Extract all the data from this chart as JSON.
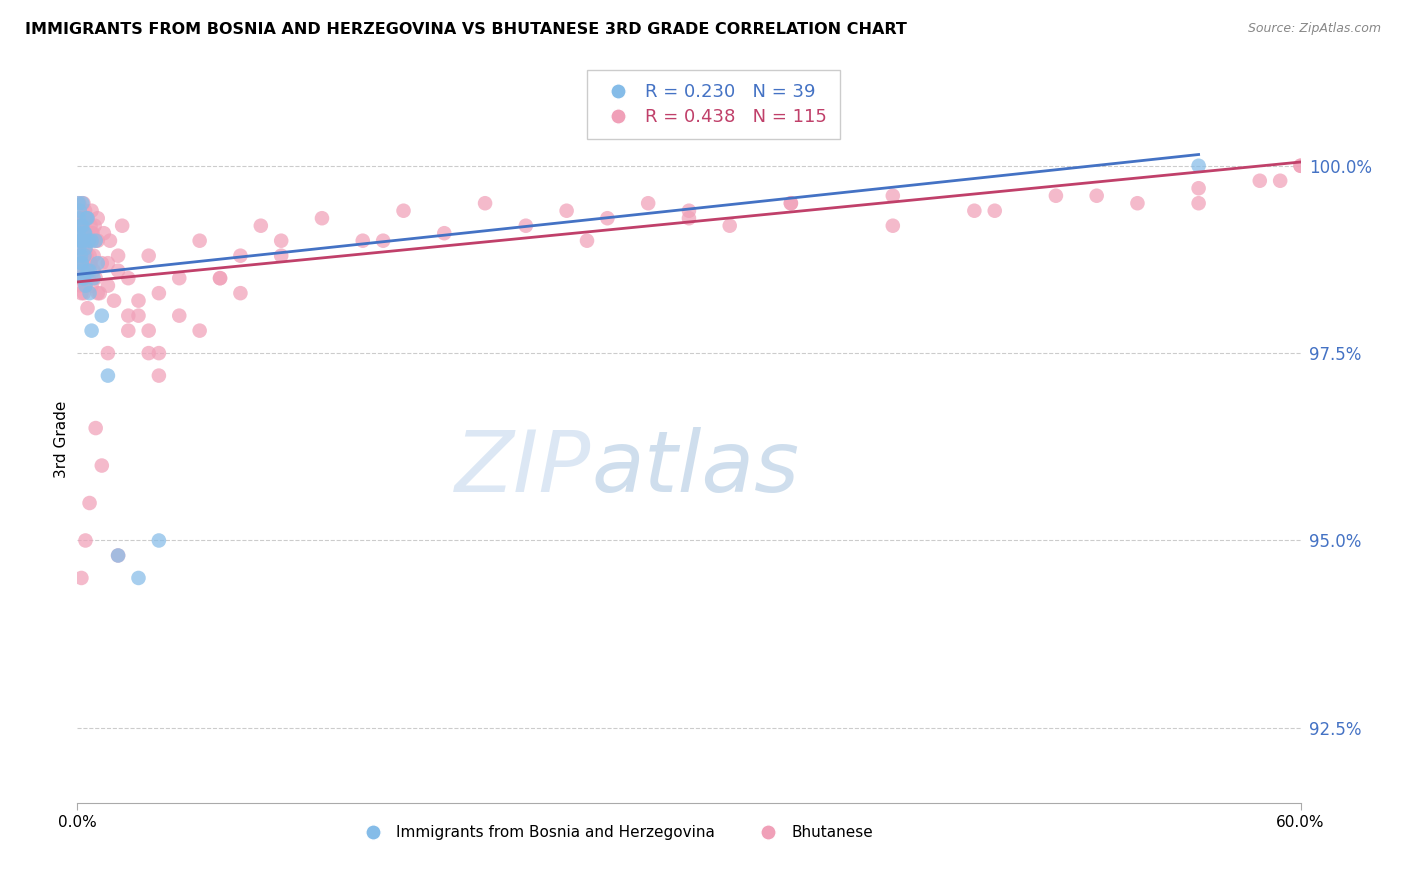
{
  "title": "IMMIGRANTS FROM BOSNIA AND HERZEGOVINA VS BHUTANESE 3RD GRADE CORRELATION CHART",
  "source": "Source: ZipAtlas.com",
  "ylabel": "3rd Grade",
  "xlim": [
    0.0,
    60.0
  ],
  "ylim": [
    91.5,
    101.2
  ],
  "yticks": [
    92.5,
    95.0,
    97.5,
    100.0
  ],
  "xticks": [
    0.0,
    60.0
  ],
  "xtick_labels": [
    "0.0%",
    "60.0%"
  ],
  "ytick_labels": [
    "92.5%",
    "95.0%",
    "97.5%",
    "100.0%"
  ],
  "bosnia_color": "#85BCE8",
  "bhutan_color": "#F0A0B8",
  "bosnia_line_color": "#4472C4",
  "bhutan_line_color": "#C0406A",
  "watermark_zip": "ZIP",
  "watermark_atlas": "atlas",
  "legend_label_bottom_bosnia": "Immigrants from Bosnia and Herzegovina",
  "legend_label_bottom_bhutan": "Bhutanese",
  "bosnia_x": [
    0.05,
    0.08,
    0.1,
    0.12,
    0.15,
    0.18,
    0.2,
    0.22,
    0.25,
    0.28,
    0.3,
    0.32,
    0.35,
    0.38,
    0.4,
    0.45,
    0.5,
    0.55,
    0.6,
    0.7,
    0.8,
    0.9,
    1.0,
    1.2,
    1.5,
    2.0,
    3.0,
    4.0,
    0.15,
    0.2,
    0.25,
    0.3,
    0.35,
    0.4,
    0.5,
    0.6,
    0.7,
    0.05,
    55.0
  ],
  "bosnia_y": [
    99.1,
    99.3,
    98.9,
    99.4,
    99.0,
    98.8,
    99.2,
    98.7,
    99.5,
    98.6,
    99.0,
    98.5,
    98.8,
    99.1,
    98.4,
    99.3,
    98.6,
    99.0,
    98.3,
    97.8,
    98.5,
    99.0,
    98.7,
    98.0,
    97.2,
    94.8,
    94.5,
    95.0,
    99.0,
    98.7,
    99.2,
    98.5,
    99.1,
    98.9,
    99.3,
    98.6,
    99.0,
    99.5,
    100.0
  ],
  "bhutan_x": [
    0.05,
    0.08,
    0.1,
    0.12,
    0.15,
    0.18,
    0.2,
    0.22,
    0.25,
    0.28,
    0.3,
    0.32,
    0.35,
    0.38,
    0.4,
    0.42,
    0.45,
    0.5,
    0.55,
    0.6,
    0.65,
    0.7,
    0.75,
    0.8,
    0.85,
    0.9,
    1.0,
    1.1,
    1.2,
    1.3,
    1.5,
    1.6,
    1.8,
    2.0,
    2.2,
    2.5,
    3.0,
    3.5,
    4.0,
    5.0,
    6.0,
    7.0,
    8.0,
    9.0,
    10.0,
    12.0,
    14.0,
    16.0,
    18.0,
    20.0,
    22.0,
    24.0,
    26.0,
    28.0,
    30.0,
    32.0,
    35.0,
    40.0,
    44.0,
    48.0,
    52.0,
    55.0,
    58.0,
    60.0,
    0.1,
    0.15,
    0.2,
    0.25,
    0.3,
    0.35,
    0.4,
    0.5,
    0.6,
    0.7,
    0.8,
    0.9,
    1.0,
    1.5,
    2.0,
    2.5,
    3.0,
    4.0,
    5.0,
    7.0,
    10.0,
    15.0,
    6.0,
    8.0,
    3.5,
    0.3,
    0.4,
    0.5,
    0.6,
    0.7,
    1.0,
    1.5,
    2.5,
    3.5,
    0.25,
    0.45,
    0.65,
    25.0,
    30.0,
    35.0,
    40.0,
    45.0,
    50.0,
    55.0,
    59.0,
    60.0,
    0.2,
    0.4,
    0.6,
    0.9,
    1.2,
    2.0,
    4.0
  ],
  "bhutan_y": [
    99.2,
    98.8,
    99.5,
    98.6,
    99.1,
    98.4,
    99.3,
    98.7,
    99.0,
    98.5,
    99.2,
    98.3,
    98.9,
    99.4,
    98.6,
    99.1,
    98.8,
    99.3,
    98.5,
    99.0,
    98.7,
    98.4,
    99.1,
    98.8,
    99.2,
    98.5,
    99.0,
    98.3,
    98.7,
    99.1,
    98.4,
    99.0,
    98.2,
    98.6,
    99.2,
    98.5,
    98.0,
    98.8,
    98.3,
    98.5,
    99.0,
    98.5,
    98.8,
    99.2,
    99.0,
    99.3,
    99.0,
    99.4,
    99.1,
    99.5,
    99.2,
    99.4,
    99.3,
    99.5,
    99.4,
    99.2,
    99.5,
    99.6,
    99.4,
    99.6,
    99.5,
    99.7,
    99.8,
    100.0,
    98.5,
    99.0,
    98.3,
    99.2,
    98.7,
    99.3,
    98.4,
    99.1,
    98.8,
    99.4,
    98.6,
    99.0,
    98.3,
    97.5,
    98.8,
    97.8,
    98.2,
    97.5,
    98.0,
    98.5,
    98.8,
    99.0,
    97.8,
    98.3,
    97.5,
    99.5,
    98.9,
    98.1,
    98.7,
    99.1,
    99.3,
    98.7,
    98.0,
    97.8,
    99.0,
    98.5,
    99.2,
    99.0,
    99.3,
    99.5,
    99.2,
    99.4,
    99.6,
    99.5,
    99.8,
    100.0,
    94.5,
    95.0,
    95.5,
    96.5,
    96.0,
    94.8,
    97.2
  ]
}
